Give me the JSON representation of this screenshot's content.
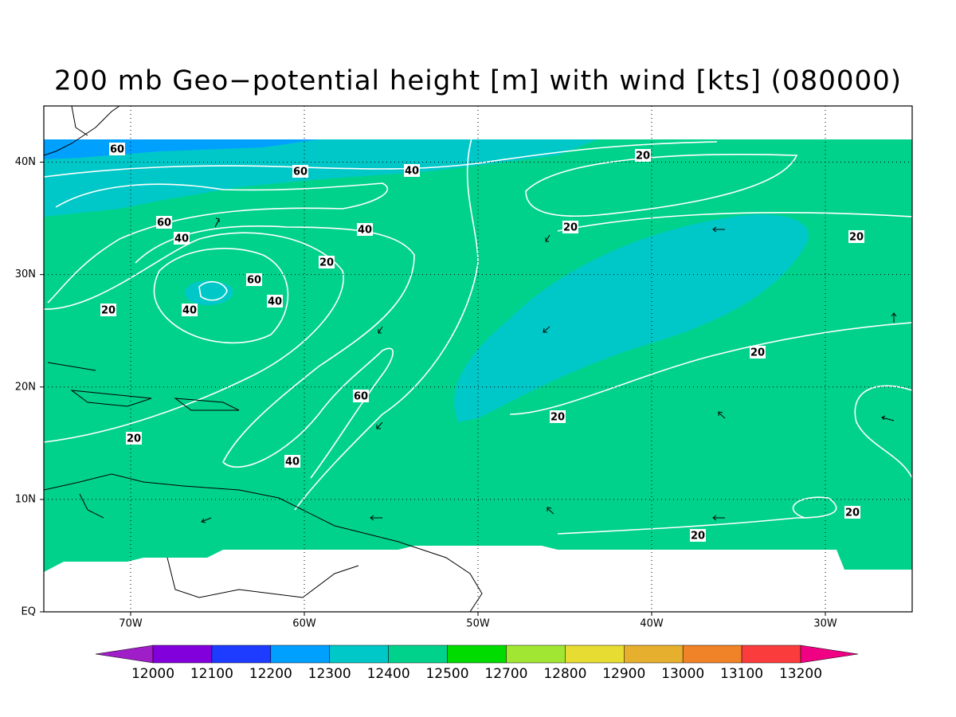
{
  "title": "200 mb Geo−potential height [m] with wind [kts] (080000)",
  "map": {
    "xlim": [
      -75,
      -25
    ],
    "ylim": [
      0,
      45
    ],
    "xticks": [
      {
        "value": -70,
        "label": "70W"
      },
      {
        "value": -60,
        "label": "60W"
      },
      {
        "value": -50,
        "label": "50W"
      },
      {
        "value": -40,
        "label": "40W"
      },
      {
        "value": -30,
        "label": "30W"
      }
    ],
    "yticks": [
      {
        "value": 0,
        "label": "EQ"
      },
      {
        "value": 10,
        "label": "10N"
      },
      {
        "value": 20,
        "label": "20N"
      },
      {
        "value": 30,
        "label": "30N"
      },
      {
        "value": 40,
        "label": "40N"
      }
    ],
    "grid": true
  },
  "contour_labels": [
    60,
    60,
    40,
    20,
    60,
    40,
    40,
    20,
    20,
    20,
    60,
    40,
    20,
    40,
    20,
    60,
    20,
    20,
    40,
    20,
    20
  ],
  "colorbar": {
    "levels": [
      12000,
      12100,
      12200,
      12300,
      12400,
      12500,
      12700,
      12800,
      12900,
      13000,
      13100,
      13200
    ],
    "colors": [
      "#a01ec8",
      "#8200dc",
      "#1e3cff",
      "#00a0ff",
      "#00c8c8",
      "#00d28c",
      "#00dc00",
      "#a0e632",
      "#e6dc32",
      "#e6af2d",
      "#f08228",
      "#fa3c3c",
      "#f00082"
    ]
  }
}
